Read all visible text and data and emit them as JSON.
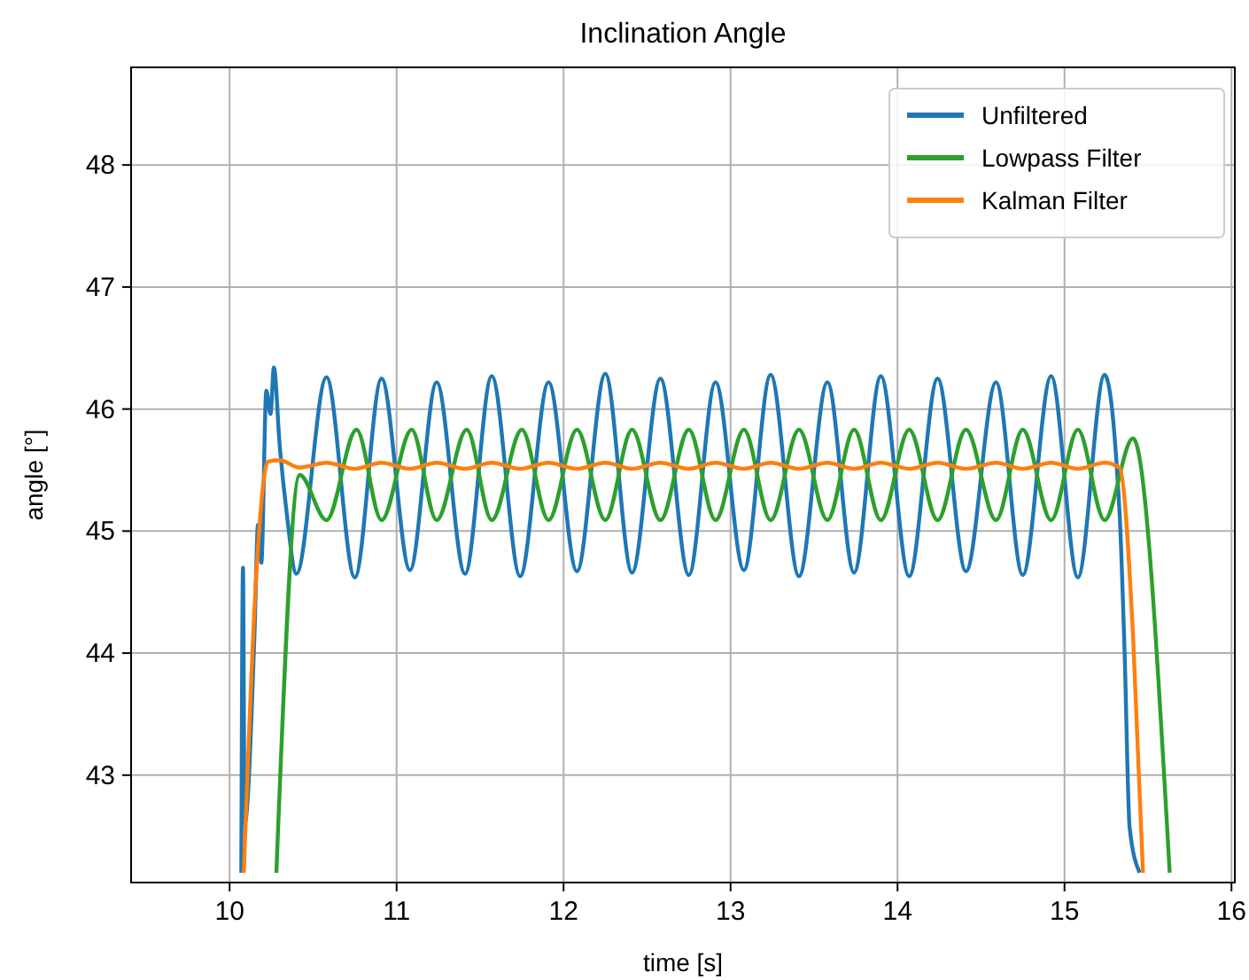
{
  "chart_data": {
    "type": "line",
    "title": "Inclination Angle",
    "xlabel": "time [s]",
    "ylabel": "angle [°]",
    "xlim": [
      9.41,
      16.02
    ],
    "ylim": [
      42.12,
      48.8
    ],
    "xticks": [
      10,
      11,
      12,
      13,
      14,
      15,
      16
    ],
    "yticks": [
      43,
      44,
      45,
      46,
      47,
      48
    ],
    "grid": true,
    "legend": "top right",
    "marker": "none",
    "line_style": "solid",
    "series": [
      {
        "name": "Unfiltered",
        "color": "#1f77b4",
        "x": [
          10.07,
          10.08,
          10.09,
          10.15,
          10.17,
          10.19,
          10.22,
          10.245,
          10.265,
          10.3,
          10.34,
          10.4,
          10.58,
          10.75,
          10.91,
          11.08,
          11.24,
          11.41,
          11.57,
          11.74,
          11.91,
          12.08,
          12.25,
          12.41,
          12.58,
          12.75,
          12.91,
          13.08,
          13.24,
          13.41,
          13.58,
          13.74,
          13.9,
          14.07,
          14.24,
          14.41,
          14.59,
          14.75,
          14.92,
          15.08,
          15.24,
          15.33,
          15.36,
          15.39,
          15.45
        ],
        "values": [
          42.2,
          44.7,
          42.6,
          44.2,
          45.05,
          44.74,
          46.15,
          45.96,
          46.34,
          45.7,
          45.17,
          44.65,
          46.26,
          44.62,
          46.25,
          44.68,
          46.22,
          44.65,
          46.27,
          44.63,
          46.22,
          44.67,
          46.29,
          44.66,
          46.25,
          44.64,
          46.22,
          44.68,
          46.28,
          44.63,
          46.22,
          44.66,
          46.27,
          44.63,
          46.25,
          44.67,
          46.22,
          44.64,
          46.27,
          44.62,
          46.28,
          45.14,
          44.0,
          42.57,
          42.2
        ]
      },
      {
        "name": "Lowpass Filter",
        "color": "#2ca02c",
        "x": [
          10.28,
          10.42,
          10.58,
          10.76,
          10.91,
          11.09,
          11.24,
          11.42,
          11.57,
          11.75,
          11.91,
          12.08,
          12.25,
          12.41,
          12.58,
          12.75,
          12.91,
          13.08,
          13.24,
          13.41,
          13.58,
          13.74,
          13.9,
          14.07,
          14.24,
          14.41,
          14.59,
          14.75,
          14.92,
          15.08,
          15.24,
          15.41,
          15.63
        ],
        "values": [
          42.2,
          45.46,
          45.09,
          45.83,
          45.09,
          45.83,
          45.09,
          45.83,
          45.09,
          45.83,
          45.09,
          45.83,
          45.09,
          45.83,
          45.09,
          45.83,
          45.09,
          45.83,
          45.09,
          45.83,
          45.09,
          45.83,
          45.09,
          45.83,
          45.09,
          45.83,
          45.09,
          45.83,
          45.09,
          45.83,
          45.09,
          45.76,
          42.2
        ]
      },
      {
        "name": "Kalman Filter",
        "color": "#ff7f0e",
        "x": [
          10.085,
          10.16,
          10.23,
          10.3,
          10.42,
          10.58,
          10.75,
          10.91,
          11.08,
          11.24,
          11.41,
          11.57,
          11.74,
          11.91,
          12.08,
          12.25,
          12.41,
          12.58,
          12.75,
          12.91,
          13.08,
          13.24,
          13.41,
          13.58,
          13.74,
          13.9,
          14.07,
          14.24,
          14.41,
          14.59,
          14.75,
          14.92,
          15.08,
          15.24,
          15.33,
          15.41,
          15.47
        ],
        "values": [
          42.2,
          44.65,
          45.57,
          45.58,
          45.52,
          45.56,
          45.51,
          45.56,
          45.51,
          45.56,
          45.51,
          45.56,
          45.51,
          45.56,
          45.51,
          45.56,
          45.51,
          45.56,
          45.51,
          45.56,
          45.51,
          45.56,
          45.51,
          45.56,
          45.51,
          45.56,
          45.51,
          45.56,
          45.51,
          45.56,
          45.51,
          45.56,
          45.51,
          45.56,
          45.52,
          44.16,
          42.2
        ]
      }
    ]
  }
}
